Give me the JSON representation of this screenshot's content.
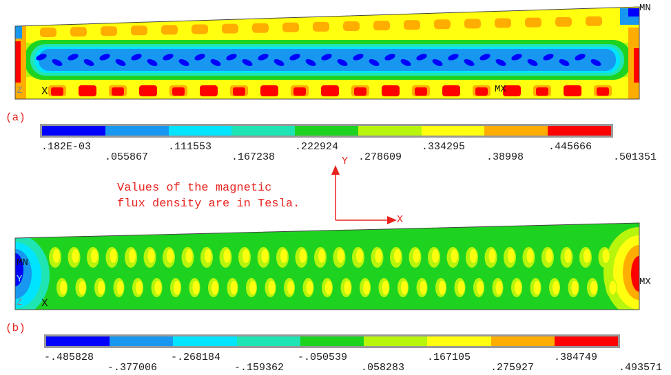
{
  "colors": {
    "band": [
      "#0000ff",
      "#1797f0",
      "#00e4ff",
      "#1fe4b3",
      "#1ed320",
      "#b7f50d",
      "#ffff0f",
      "#ffad00",
      "#ff0000"
    ],
    "annotation": "#e8231e"
  },
  "panel_a": {
    "label": "(a)",
    "mn": "MN",
    "mx": "MX",
    "axis_mark": "X",
    "triad_z": "Z",
    "scale": [
      ".182E-03",
      ".055867",
      ".111553",
      ".167238",
      ".222924",
      ".278609",
      ".334295",
      ".38998",
      ".445666",
      ".501351"
    ]
  },
  "panel_b": {
    "label": "(b)",
    "mn": "MN",
    "mx": "MX",
    "axis_mark": "X",
    "triad_y": "Y",
    "triad_z": "Z",
    "scale": [
      "-.485828",
      "-.377006",
      "-.268184",
      "-.159362",
      "-.050539",
      ".058283",
      ".167105",
      ".275927",
      ".384749",
      ".493571"
    ]
  },
  "axes": {
    "y": "Y",
    "x": "X"
  },
  "note": {
    "line1": "Values of the magnetic",
    "line2": "flux density are in Tesla."
  }
}
